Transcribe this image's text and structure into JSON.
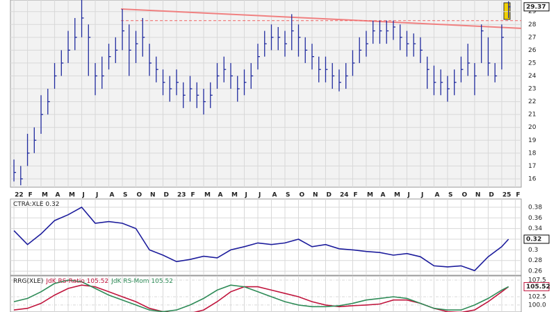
{
  "chart_data": [
    {
      "type": "ohlc",
      "color": "#1f2a9e",
      "x": [
        0,
        0.5,
        1,
        1.5,
        2,
        2.5,
        3,
        3.5,
        4,
        4.5,
        5,
        5.5,
        6,
        6.5,
        7,
        7.5,
        8,
        8.5,
        9,
        9.5,
        10,
        10.5,
        11,
        11.5,
        12,
        12.5,
        13,
        13.5,
        14,
        14.5,
        15,
        15.5,
        16,
        16.5,
        17,
        17.5,
        18,
        18.5,
        19,
        19.5,
        20,
        20.5,
        21,
        21.5,
        22,
        22.5,
        23,
        23.5,
        24,
        24.5,
        25,
        25.5,
        26,
        26.5,
        27,
        27.5,
        28,
        28.5,
        29,
        29.5,
        30,
        30.5,
        31,
        31.5,
        32,
        32.5,
        33,
        33.5,
        34,
        34.5,
        35,
        35.5,
        36,
        36.5
      ],
      "high": [
        17.5,
        17,
        19.5,
        20,
        22.5,
        23,
        25,
        26,
        27.5,
        28.5,
        30,
        28,
        25,
        25.5,
        26.5,
        27,
        29.2,
        28,
        27.5,
        28.5,
        26.5,
        25.5,
        24.5,
        24,
        24.5,
        23.5,
        24,
        23.5,
        23,
        23.5,
        25,
        25.5,
        25,
        24,
        24.5,
        25,
        26.5,
        27.5,
        28,
        27.8,
        27.5,
        28.8,
        28,
        27,
        26.5,
        25.5,
        25.5,
        25,
        24.5,
        25,
        26,
        27,
        27.5,
        28.3,
        28.3,
        28.3,
        28.3,
        28,
        27.5,
        27.3,
        27,
        25.5,
        24.8,
        24.5,
        24,
        24.5,
        25.5,
        26.5,
        25,
        28,
        27,
        25,
        28,
        29.8
      ],
      "low": [
        15.8,
        15.5,
        17,
        18,
        19.5,
        21,
        23,
        24,
        25,
        26,
        27,
        24,
        22.5,
        23,
        24.5,
        25,
        26,
        24,
        25,
        25.5,
        24,
        23.5,
        22.5,
        22,
        22.5,
        21.5,
        22,
        21.5,
        21,
        21.5,
        23,
        23.5,
        23,
        22,
        22.5,
        23,
        24.5,
        25.5,
        26,
        26,
        25.5,
        26,
        25.5,
        25,
        24.5,
        23.5,
        23.5,
        23,
        22.8,
        23,
        24,
        25,
        25.5,
        26.5,
        26.5,
        26.5,
        26.8,
        26,
        25.5,
        25.5,
        25,
        23,
        22.5,
        22.5,
        22,
        22.5,
        23.5,
        24,
        22.5,
        25,
        24,
        23.5,
        24.5,
        28.5
      ],
      "close": [
        16.5,
        16,
        18,
        19,
        21,
        22,
        24,
        25,
        26,
        27,
        28.5,
        27,
        24,
        24,
        25.5,
        26,
        27.5,
        26,
        26.5,
        27,
        25,
        24.5,
        23.5,
        23,
        23.5,
        22.5,
        23,
        22.5,
        22,
        22.5,
        24,
        24.5,
        24,
        23,
        23.5,
        24,
        25.5,
        26.5,
        27,
        27,
        26.5,
        27.5,
        27,
        26,
        25.5,
        24.5,
        24.5,
        24,
        23.5,
        24,
        25,
        26,
        26.5,
        27.5,
        27.5,
        27.5,
        27.8,
        27,
        26.5,
        26.5,
        26,
        24.5,
        23.5,
        23.5,
        23,
        23.5,
        24.5,
        25,
        24,
        27.5,
        25,
        24,
        27,
        29.37
      ],
      "last_label": "29.37",
      "trendline": {
        "x": [
          7.9,
          37.44
        ],
        "y": [
          29.2,
          27.7
        ],
        "color": "#f08080"
      },
      "resistance": {
        "x": [
          7.9,
          37.44
        ],
        "y": 28.3,
        "color": "#f06060"
      },
      "xlim": [
        -0.26,
        37.44
      ],
      "ylim": [
        15.35,
        29.9
      ],
      "yticks": [
        16,
        17,
        18,
        19,
        20,
        21,
        22,
        23,
        24,
        25,
        26,
        27,
        28,
        29
      ],
      "xticks": [
        {
          "value": 0,
          "label": "22"
        },
        {
          "value": 1,
          "label": "F"
        },
        {
          "value": 2,
          "label": "M"
        },
        {
          "value": 3,
          "label": "A"
        },
        {
          "value": 4,
          "label": "M"
        },
        {
          "value": 5,
          "label": "J"
        },
        {
          "value": 6,
          "label": "J"
        },
        {
          "value": 7,
          "label": "A"
        },
        {
          "value": 8,
          "label": "S"
        },
        {
          "value": 9,
          "label": "O"
        },
        {
          "value": 10,
          "label": "N"
        },
        {
          "value": 11,
          "label": "D"
        },
        {
          "value": 12,
          "label": "23"
        },
        {
          "value": 13,
          "label": "F"
        },
        {
          "value": 14,
          "label": "M"
        },
        {
          "value": 15,
          "label": "A"
        },
        {
          "value": 16,
          "label": "M"
        },
        {
          "value": 17,
          "label": "J"
        },
        {
          "value": 18,
          "label": "J"
        },
        {
          "value": 19,
          "label": "A"
        },
        {
          "value": 20,
          "label": "S"
        },
        {
          "value": 21,
          "label": "O"
        },
        {
          "value": 22,
          "label": "N"
        },
        {
          "value": 23,
          "label": "D"
        },
        {
          "value": 24,
          "label": "24"
        },
        {
          "value": 25,
          "label": "F"
        },
        {
          "value": 26,
          "label": "M"
        },
        {
          "value": 27,
          "label": "A"
        },
        {
          "value": 28,
          "label": "M"
        },
        {
          "value": 29,
          "label": "J"
        },
        {
          "value": 30,
          "label": "J"
        },
        {
          "value": 31,
          "label": "A"
        },
        {
          "value": 32,
          "label": "S"
        },
        {
          "value": 33,
          "label": "O"
        },
        {
          "value": 34,
          "label": "N"
        },
        {
          "value": 35,
          "label": "D"
        },
        {
          "value": 36,
          "label": "25"
        },
        {
          "value": 37,
          "label": "F"
        }
      ],
      "grid": true
    },
    {
      "type": "line",
      "title": "CTRA:XLE 0.32",
      "x": [
        0,
        1,
        2,
        3,
        4,
        5,
        6,
        7,
        8,
        9,
        10,
        11,
        12,
        13,
        14,
        15,
        16,
        17,
        18,
        19,
        20,
        21,
        22,
        23,
        24,
        25,
        26,
        27,
        28,
        29,
        30,
        31,
        32,
        33,
        34,
        35,
        36,
        36.5
      ],
      "series": [
        {
          "name": "CTRA:XLE",
          "color": "#1c1c9c",
          "values": [
            0.336,
            0.31,
            0.33,
            0.355,
            0.366,
            0.38,
            0.35,
            0.353,
            0.35,
            0.34,
            0.3,
            0.29,
            0.278,
            0.282,
            0.288,
            0.285,
            0.3,
            0.306,
            0.313,
            0.31,
            0.313,
            0.32,
            0.306,
            0.31,
            0.302,
            0.3,
            0.297,
            0.295,
            0.29,
            0.293,
            0.287,
            0.27,
            0.268,
            0.27,
            0.261,
            0.287,
            0.306,
            0.32
          ],
          "last_label": "0.32"
        }
      ],
      "xlim": [
        -0.26,
        37.44
      ],
      "ylim": [
        0.2523,
        0.3955
      ],
      "yticks": [
        0.26,
        0.28,
        0.3,
        0.32,
        0.34,
        0.36,
        0.38
      ]
    },
    {
      "type": "line",
      "title": "RRG(XLE)",
      "x": [
        0,
        1,
        2,
        3,
        4,
        5,
        6,
        7,
        8,
        9,
        10,
        11,
        12,
        13,
        14,
        15,
        16,
        17,
        18,
        19,
        20,
        21,
        22,
        23,
        24,
        25,
        26,
        27,
        28,
        29,
        30,
        31,
        32,
        33,
        34,
        35,
        36,
        36.5
      ],
      "series": [
        {
          "name": "JdK RS-Ratio 105.52",
          "color": "#c0143c",
          "values": [
            98.5,
            99,
            100.5,
            103,
            105,
            106,
            105.5,
            104,
            102.5,
            101,
            99,
            98,
            97.5,
            97.5,
            98.5,
            101,
            104,
            105.5,
            105.5,
            104.5,
            103.5,
            102.5,
            101,
            100,
            99.5,
            99.8,
            100,
            100.3,
            101.5,
            101.5,
            100.5,
            99,
            98,
            97.8,
            98.5,
            101,
            104,
            105.52
          ],
          "last_label": "105.52"
        },
        {
          "name": "JdK RS-Mom 105.52",
          "color": "#2e8b57",
          "values": [
            101,
            102,
            104,
            106.5,
            107.5,
            107,
            105,
            103,
            101.5,
            100,
            98.5,
            98,
            98.5,
            100,
            102,
            104.5,
            106,
            105.5,
            104,
            102.5,
            101,
            100,
            99.5,
            99.5,
            99.8,
            100.5,
            101.5,
            102,
            102.5,
            102,
            100.5,
            99,
            98.5,
            98.5,
            100,
            102,
            104.5,
            105.52
          ]
        }
      ],
      "xlim": [
        -0.26,
        37.44
      ],
      "ylim": [
        97.9,
        108.75
      ],
      "yticks": [
        {
          "value": 100,
          "label": "100.0"
        },
        {
          "value": 102.5,
          "label": "102.5"
        },
        {
          "value": 107.5,
          "label": "107.5"
        }
      ]
    }
  ]
}
